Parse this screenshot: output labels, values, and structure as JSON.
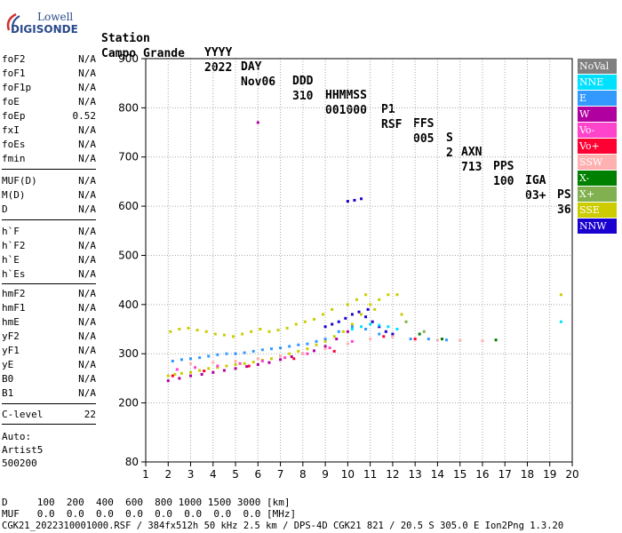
{
  "logo": {
    "line1": "Lowell",
    "line2": "DIGISONDE"
  },
  "header": {
    "labels": [
      "Station",
      "YYYY",
      "DAY",
      "DDD",
      "HHMMSS",
      "P1",
      "FFS",
      "S",
      "AXN",
      "PPS",
      "IGA",
      "PS"
    ],
    "values": [
      "Campo Grande",
      "2022",
      "Nov06",
      "310",
      "001000",
      "RSF",
      "005",
      "2",
      "713",
      "100",
      "03+",
      "36"
    ]
  },
  "params_group1": [
    {
      "name": "foF2",
      "value": "N/A"
    },
    {
      "name": "foF1",
      "value": "N/A"
    },
    {
      "name": "foF1p",
      "value": "N/A"
    },
    {
      "name": "foE",
      "value": "N/A"
    },
    {
      "name": "foEp",
      "value": "0.52"
    },
    {
      "name": "fxI",
      "value": "N/A"
    },
    {
      "name": "foEs",
      "value": "N/A"
    },
    {
      "name": "fmin",
      "value": "N/A"
    }
  ],
  "params_group2": [
    {
      "name": "MUF(D)",
      "value": "N/A"
    },
    {
      "name": "M(D)",
      "value": "N/A"
    },
    {
      "name": "D",
      "value": "N/A"
    }
  ],
  "params_group3": [
    {
      "name": "h`F",
      "value": "N/A"
    },
    {
      "name": "h`F2",
      "value": "N/A"
    },
    {
      "name": "h`E",
      "value": "N/A"
    },
    {
      "name": "h`Es",
      "value": "N/A"
    }
  ],
  "params_group4": [
    {
      "name": "hmF2",
      "value": "N/A"
    },
    {
      "name": "hmF1",
      "value": "N/A"
    },
    {
      "name": "hmE",
      "value": "N/A"
    },
    {
      "name": "yF2",
      "value": "N/A"
    },
    {
      "name": "yF1",
      "value": "N/A"
    },
    {
      "name": "yE",
      "value": "N/A"
    },
    {
      "name": "B0",
      "value": "N/A"
    },
    {
      "name": "B1",
      "value": "N/A"
    }
  ],
  "c_level": {
    "name": "C-level",
    "value": "22"
  },
  "auto": {
    "line1": "Auto:",
    "line2": "Artist5",
    "line3": "500200"
  },
  "legend": [
    {
      "label": "NoVal",
      "color": "#808080",
      "text_color": "#ffffff"
    },
    {
      "label": "NNE",
      "color": "#00e0ff",
      "text_color": "#ffffff"
    },
    {
      "label": "E",
      "color": "#3399ff",
      "text_color": "#ffffff"
    },
    {
      "label": "W",
      "color": "#b000a0",
      "text_color": "#ffffff"
    },
    {
      "label": "Vo-",
      "color": "#ff44cc",
      "text_color": "#ffffff"
    },
    {
      "label": "Vo+",
      "color": "#ff0033",
      "text_color": "#ffffff"
    },
    {
      "label": "SSW",
      "color": "#ffb0b0",
      "text_color": "#ffffff"
    },
    {
      "label": "X-",
      "color": "#008000",
      "text_color": "#ffffff"
    },
    {
      "label": "X+",
      "color": "#80b050",
      "text_color": "#ffffff"
    },
    {
      "label": "SSE",
      "color": "#cccc00",
      "text_color": "#ffffff"
    },
    {
      "label": "NNW",
      "color": "#1a00d0",
      "text_color": "#ffffff"
    }
  ],
  "footer": {
    "d_line": "D     100  200  400  600  800 1000 1500 3000 [km]",
    "muf_line": "MUF   0.0  0.0  0.0  0.0  0.0  0.0  0.0  0.0 [MHz]",
    "file_line": "CGK21_2022310001000.RSF / 384fx512h 50 kHz 2.5 km / DPS-4D CGK21 821 / 20.5 S 305.0 E Ion2Png 1.3.20"
  },
  "chart_data": {
    "type": "scatter",
    "title": "",
    "xlabel": "",
    "ylabel": "",
    "xlim": [
      1,
      20
    ],
    "ylim": [
      80,
      900
    ],
    "x_ticks": [
      1,
      2,
      3,
      4,
      5,
      6,
      7,
      8,
      9,
      10,
      11,
      12,
      13,
      14,
      15,
      16,
      17,
      18,
      19,
      20
    ],
    "y_ticks": [
      80,
      200,
      300,
      400,
      500,
      600,
      700,
      800,
      900
    ],
    "grid": true,
    "series": [
      {
        "name": "SSE",
        "color": "#cccc00",
        "x": [
          2.0,
          2.3,
          2.6,
          3.0,
          3.4,
          3.8,
          4.2,
          4.6,
          5.0,
          5.4,
          5.8,
          6.2,
          6.6,
          7.0,
          7.4,
          7.8,
          8.2,
          8.6,
          9.0,
          9.4,
          9.8,
          10.2,
          10.6,
          11.0,
          11.4,
          11.8,
          12.2,
          2.1,
          2.5,
          2.9,
          3.3,
          3.7,
          4.1,
          4.5,
          4.9,
          5.3,
          5.7,
          6.1,
          6.5,
          6.9,
          7.3,
          7.7,
          8.1,
          8.5,
          8.9,
          9.3,
          10.0,
          10.4,
          10.8,
          11.2,
          12.4,
          19.5
        ],
        "y": [
          255,
          258,
          260,
          262,
          266,
          270,
          272,
          275,
          278,
          280,
          283,
          287,
          290,
          295,
          300,
          305,
          310,
          318,
          325,
          335,
          345,
          360,
          380,
          400,
          410,
          420,
          420,
          345,
          350,
          352,
          348,
          345,
          340,
          338,
          335,
          340,
          345,
          350,
          345,
          348,
          352,
          360,
          365,
          370,
          380,
          390,
          400,
          410,
          420,
          390,
          380,
          420
        ]
      },
      {
        "name": "E",
        "color": "#3399ff",
        "x": [
          2.2,
          2.6,
          3.0,
          3.4,
          3.8,
          4.2,
          4.6,
          5.0,
          5.4,
          5.8,
          6.2,
          6.6,
          7.0,
          7.4,
          7.8,
          8.2,
          8.6,
          9.0,
          9.6,
          10.2,
          10.8,
          11.4,
          12.0,
          12.8,
          13.6,
          14.4
        ],
        "y": [
          285,
          288,
          290,
          292,
          295,
          298,
          300,
          300,
          302,
          305,
          308,
          310,
          312,
          315,
          318,
          320,
          325,
          330,
          345,
          355,
          350,
          340,
          335,
          330,
          330,
          328
        ]
      },
      {
        "name": "W",
        "color": "#b000a0",
        "x": [
          2.0,
          2.5,
          3.0,
          3.5,
          4.0,
          4.5,
          5.0,
          5.5,
          6.0,
          6.5,
          7.0,
          7.5,
          8.0,
          8.5,
          9.0,
          9.5,
          10.0,
          6.0
        ],
        "y": [
          245,
          250,
          255,
          258,
          262,
          266,
          270,
          274,
          278,
          282,
          288,
          294,
          300,
          306,
          315,
          330,
          345,
          770
        ]
      },
      {
        "name": "NNW",
        "color": "#1a00d0",
        "x": [
          9.0,
          9.3,
          9.6,
          9.9,
          10.2,
          10.5,
          10.8,
          11.1,
          11.4,
          11.7,
          12.0,
          10.0,
          10.3,
          10.6,
          10.9
        ],
        "y": [
          355,
          360,
          365,
          372,
          380,
          385,
          375,
          365,
          355,
          345,
          340,
          610,
          612,
          615,
          390
        ]
      },
      {
        "name": "NNE",
        "color": "#00e0ff",
        "x": [
          10.2,
          10.6,
          11.0,
          11.4,
          11.8,
          12.2,
          19.5
        ],
        "y": [
          350,
          355,
          360,
          358,
          355,
          350,
          365
        ]
      },
      {
        "name": "Vo-",
        "color": "#ff44cc",
        "x": [
          2.4,
          3.2,
          4.2,
          5.2,
          6.2,
          7.2,
          8.2,
          9.2,
          10.2
        ],
        "y": [
          268,
          272,
          275,
          280,
          285,
          292,
          300,
          312,
          325
        ]
      },
      {
        "name": "SSW",
        "color": "#ffb0b0",
        "x": [
          3.0,
          4.0,
          5.0,
          6.0,
          7.0,
          8.0,
          9.0,
          10.0,
          11.0,
          12.0,
          13.0,
          14.0,
          15.0,
          16.0
        ],
        "y": [
          280,
          282,
          285,
          290,
          295,
          300,
          310,
          320,
          330,
          335,
          330,
          328,
          327,
          326
        ]
      },
      {
        "name": "Vo+",
        "color": "#ff0033",
        "x": [
          2.2,
          3.6,
          5.6,
          7.6,
          9.4,
          11.6,
          13.0
        ],
        "y": [
          255,
          265,
          275,
          290,
          305,
          335,
          330
        ]
      },
      {
        "name": "X-",
        "color": "#008000",
        "x": [
          13.2,
          14.2,
          16.6
        ],
        "y": [
          340,
          330,
          328
        ]
      },
      {
        "name": "X+",
        "color": "#80b050",
        "x": [
          12.6,
          13.4
        ],
        "y": [
          365,
          345
        ]
      }
    ]
  }
}
